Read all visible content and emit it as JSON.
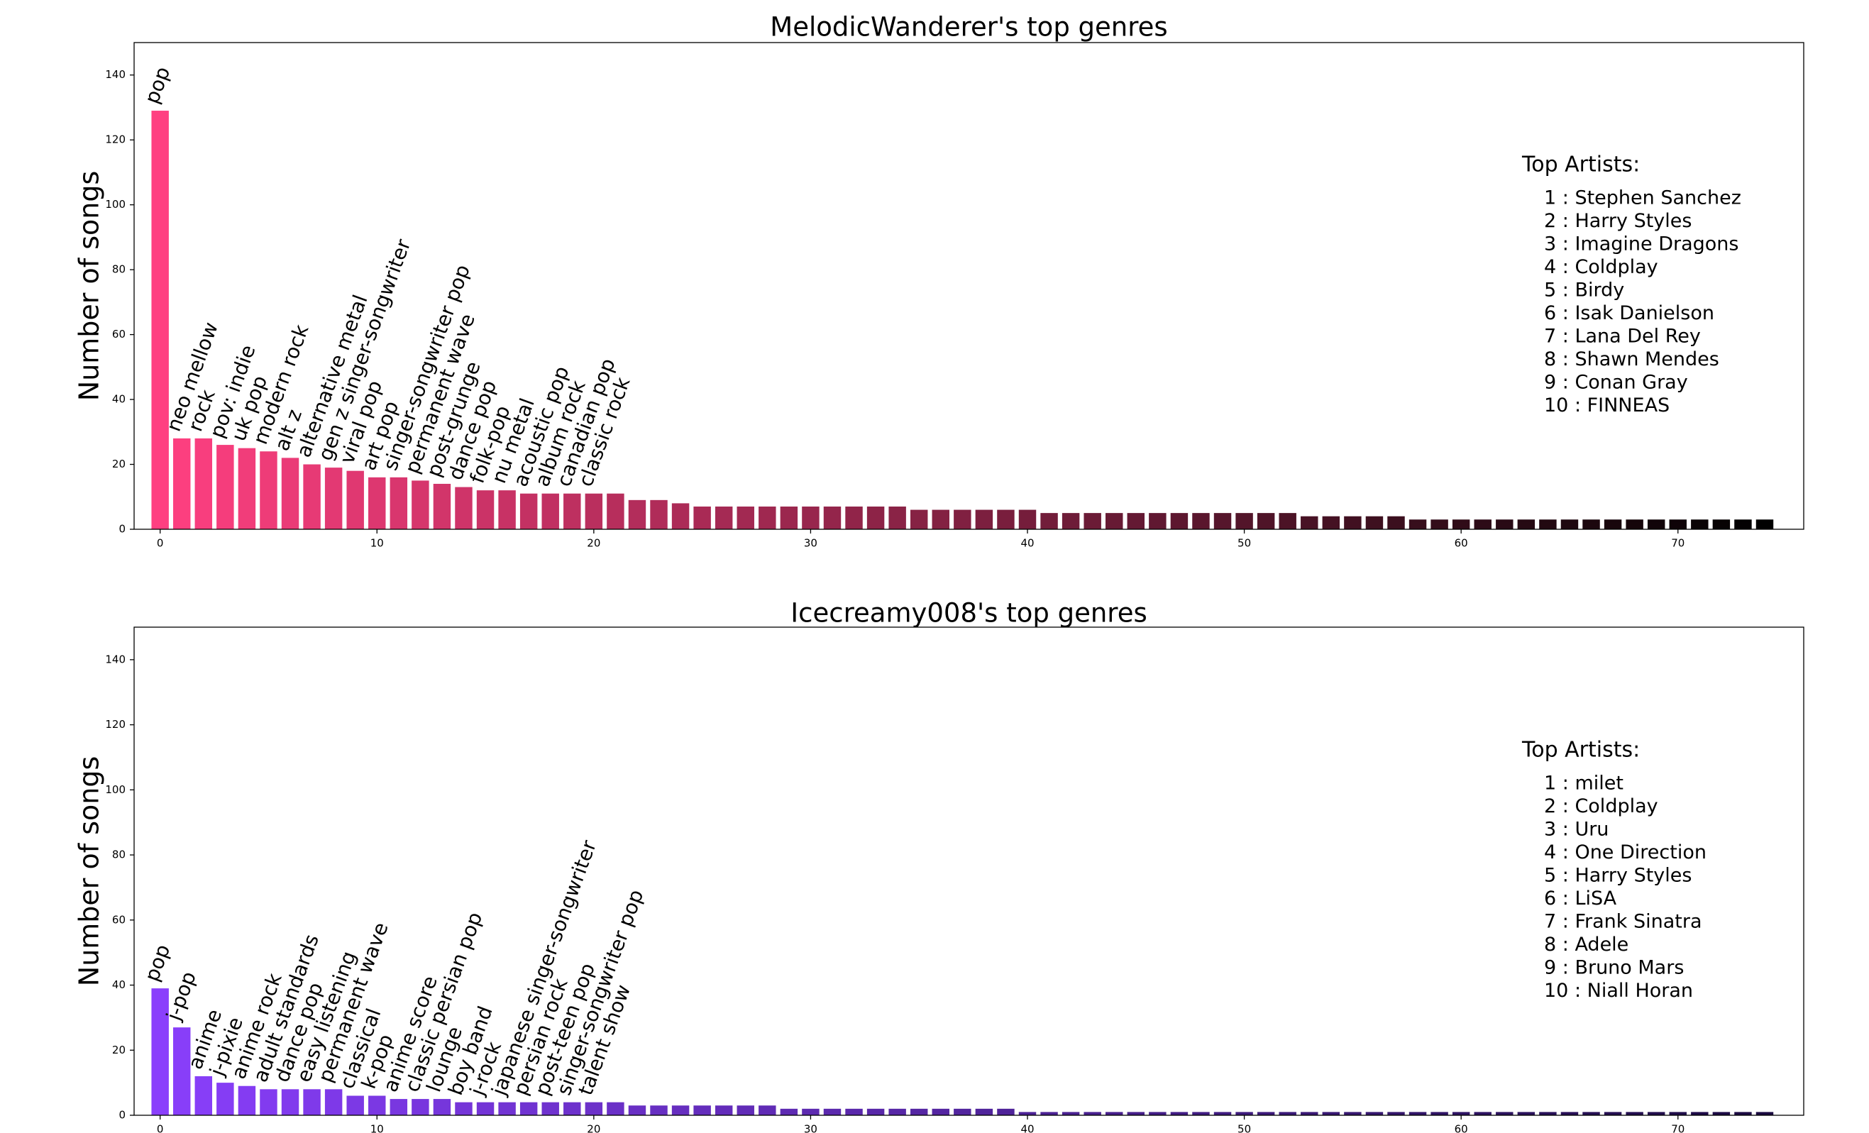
{
  "chart_data": [
    {
      "type": "bar",
      "title": "MelodicWanderer's top genres",
      "ylabel": "Number of songs",
      "categories": [
        "pop",
        "neo mellow",
        "rock",
        "pov: indie",
        "uk pop",
        "modern rock",
        "alt z",
        "alternative metal",
        "gen z singer-songwriter",
        "viral pop",
        "art pop",
        "singer-songwriter pop",
        "permanent wave",
        "post-grunge",
        "dance pop",
        "folk-pop",
        "nu metal",
        "acoustic pop",
        "album rock",
        "canadian pop",
        "classic rock",
        null,
        null,
        null,
        null,
        null,
        null,
        null,
        null,
        null,
        null,
        null,
        null,
        null,
        null,
        null,
        null,
        null,
        null,
        null,
        null,
        null,
        null,
        null,
        null,
        null,
        null,
        null,
        null,
        null,
        null,
        null,
        null,
        null,
        null,
        null,
        null,
        null,
        null,
        null,
        null,
        null,
        null,
        null,
        null,
        null,
        null,
        null,
        null,
        null,
        null,
        null,
        null,
        null,
        null
      ],
      "values": [
        129,
        28,
        28,
        26,
        25,
        24,
        22,
        20,
        19,
        18,
        16,
        16,
        15,
        14,
        13,
        12,
        12,
        11,
        11,
        11,
        11,
        11,
        9,
        9,
        8,
        7,
        7,
        7,
        7,
        7,
        7,
        7,
        7,
        7,
        7,
        6,
        6,
        6,
        6,
        6,
        6,
        5,
        5,
        5,
        5,
        5,
        5,
        5,
        5,
        5,
        5,
        5,
        5,
        4,
        4,
        4,
        4,
        4,
        3,
        3,
        3,
        3,
        3,
        3,
        3,
        3,
        3,
        3,
        3,
        3,
        3,
        3,
        3,
        3,
        3
      ],
      "color_gradient": [
        "#ff4081",
        "#000000"
      ],
      "xlim": [
        -1.2,
        75.8
      ],
      "xticks": [
        0,
        10,
        20,
        30,
        40,
        50,
        60,
        70
      ],
      "ylim": [
        0,
        150
      ],
      "yticks": [
        0,
        20,
        40,
        60,
        80,
        100,
        120,
        140
      ],
      "top_artists_title": "Top Artists:",
      "top_artists": [
        "1 : Stephen Sanchez",
        "2 : Harry Styles",
        "3 : Imagine Dragons",
        "4 : Coldplay",
        "5 : Birdy",
        "6 : Isak Danielson",
        "7 : Lana Del Rey",
        "8 : Shawn Mendes",
        "9 : Conan Gray",
        "10 : FINNEAS"
      ]
    },
    {
      "type": "bar",
      "title": "Icecreamy008's top genres",
      "ylabel": "Number of songs",
      "categories": [
        "pop",
        "j-pop",
        "anime",
        "j-pixie",
        "anime rock",
        "adult standards",
        "dance pop",
        "easy listening",
        "permanent wave",
        "classical",
        "k-pop",
        "anime score",
        "classic persian pop",
        "lounge",
        "boy band",
        "j-rock",
        "japanese singer-songwriter",
        "persian rock",
        "post-teen pop",
        "singer-songwriter pop",
        "talent show",
        null,
        null,
        null,
        null,
        null,
        null,
        null,
        null,
        null,
        null,
        null,
        null,
        null,
        null,
        null,
        null,
        null,
        null,
        null,
        null,
        null,
        null,
        null,
        null,
        null,
        null,
        null,
        null,
        null,
        null,
        null,
        null,
        null,
        null,
        null,
        null,
        null,
        null,
        null,
        null,
        null,
        null,
        null,
        null,
        null,
        null,
        null,
        null,
        null,
        null,
        null,
        null,
        null,
        null
      ],
      "values": [
        39,
        27,
        12,
        10,
        9,
        8,
        8,
        8,
        8,
        6,
        6,
        5,
        5,
        5,
        4,
        4,
        4,
        4,
        4,
        4,
        4,
        4,
        3,
        3,
        3,
        3,
        3,
        3,
        3,
        2,
        2,
        2,
        2,
        2,
        2,
        2,
        2,
        2,
        2,
        2,
        1,
        1,
        1,
        1,
        1,
        1,
        1,
        1,
        1,
        1,
        1,
        1,
        1,
        1,
        1,
        1,
        1,
        1,
        1,
        1,
        1,
        1,
        1,
        1,
        1,
        1,
        1,
        1,
        1,
        1,
        1,
        1,
        1,
        1,
        1
      ],
      "color_gradient": [
        "#8a3ffc",
        "#1a0a40"
      ],
      "xlim": [
        -1.2,
        75.8
      ],
      "xticks": [
        0,
        10,
        20,
        30,
        40,
        50,
        60,
        70
      ],
      "ylim": [
        0,
        150
      ],
      "yticks": [
        0,
        20,
        40,
        60,
        80,
        100,
        120,
        140
      ],
      "top_artists_title": "Top Artists:",
      "top_artists": [
        "1 : milet",
        "2 : Coldplay",
        "3 : Uru",
        "4 : One Direction",
        "5 : Harry Styles",
        "6 : LiSA",
        "7 : Frank Sinatra",
        "8 : Adele",
        "9 : Bruno Mars",
        "10 : Niall Horan"
      ]
    }
  ]
}
